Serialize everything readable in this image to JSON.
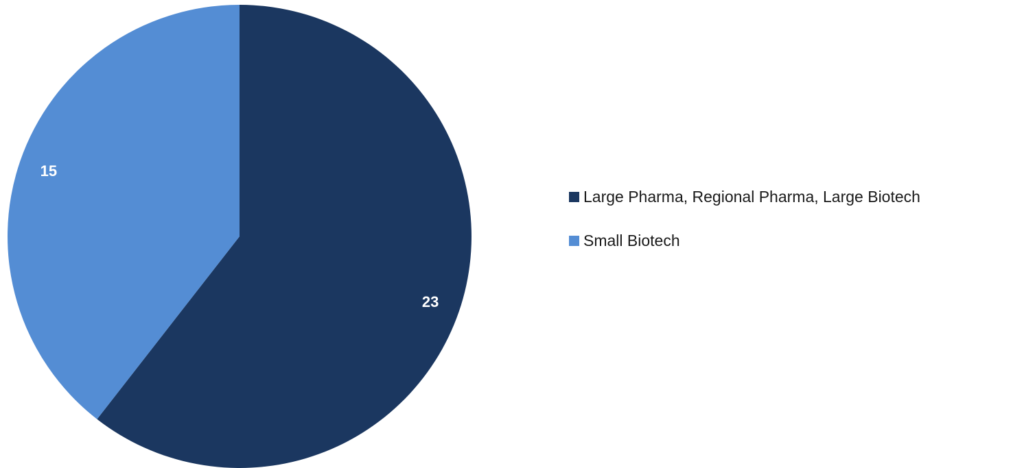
{
  "chart_data": {
    "type": "pie",
    "slices": [
      {
        "label": "Large Pharma, Regional Pharma, Large Biotech",
        "value": 23,
        "color": "#1b3760"
      },
      {
        "label": "Small Biotech",
        "value": 15,
        "color": "#548dd4"
      }
    ],
    "start_angle_deg": 0,
    "direction": "clockwise",
    "data_labels": "value",
    "legend_position": "right"
  },
  "legend": {
    "items": [
      {
        "label": "Large Pharma, Regional Pharma, Large Biotech",
        "color": "#1b3760"
      },
      {
        "label": "Small Biotech",
        "color": "#548dd4"
      }
    ]
  }
}
